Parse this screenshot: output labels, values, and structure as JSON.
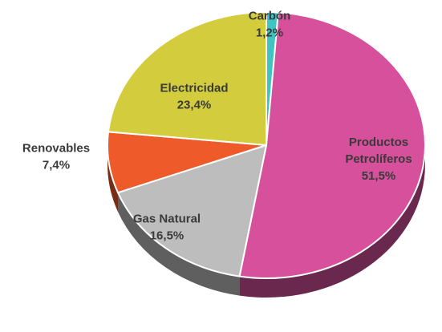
{
  "chart_data": {
    "type": "pie",
    "title": "",
    "start_angle_deg": 0,
    "direction": "clockwise",
    "slices": [
      {
        "label": "Carbón",
        "value": 1.2,
        "value_label": "1,2%",
        "color": "#3fc4c4"
      },
      {
        "label": "Productos Petrolíferos",
        "label_lines": [
          "Productos",
          "Petrolíferos"
        ],
        "value": 51.5,
        "value_label": "51,5%",
        "color": "#d6509c"
      },
      {
        "label": "Gas Natural",
        "value": 16.5,
        "value_label": "16,5%",
        "color": "#bdbdbd"
      },
      {
        "label": "Renovables",
        "value": 7.4,
        "value_label": "7,4%",
        "color": "#ef5a2a"
      },
      {
        "label": "Electricidad",
        "value": 23.4,
        "value_label": "23,4%",
        "color": "#d3cc3c"
      }
    ],
    "label_color": "#3a3a3a",
    "legend": "none",
    "style": "3d"
  }
}
